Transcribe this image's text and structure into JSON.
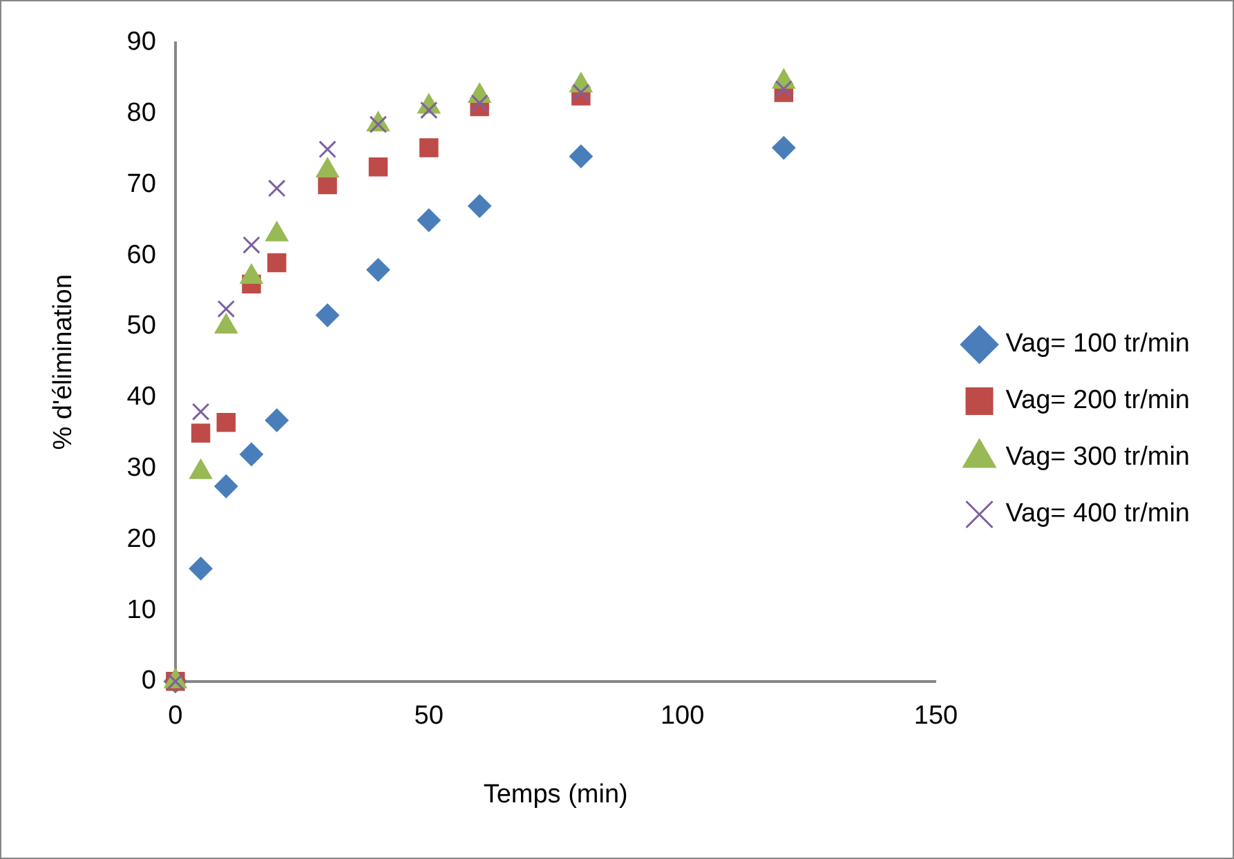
{
  "chart_data": {
    "type": "scatter",
    "xlabel": "Temps (min)",
    "ylabel": "% d'élimination",
    "x": [
      0,
      5,
      10,
      15,
      20,
      30,
      40,
      50,
      60,
      80,
      120
    ],
    "xlim": [
      0,
      150
    ],
    "xticks": [
      0,
      50,
      100,
      150
    ],
    "ylim": [
      0,
      90
    ],
    "yticks": [
      0,
      10,
      20,
      30,
      40,
      50,
      60,
      70,
      80,
      90
    ],
    "grid": false,
    "legend": "right",
    "series": [
      {
        "name": "Vag= 100 tr/min",
        "color": "#4a7ebb",
        "marker": "diamond",
        "values": [
          0,
          15.9,
          27.5,
          32,
          36.8,
          51.6,
          58,
          65,
          67,
          74,
          75.2
        ]
      },
      {
        "name": "Vag= 200 tr/min",
        "color": "#be4b48",
        "marker": "square",
        "values": [
          0,
          35,
          36.5,
          56,
          59,
          70,
          72.5,
          75.2,
          81,
          82.5,
          83
        ]
      },
      {
        "name": "Vag= 300 tr/min",
        "color": "#98b954",
        "marker": "triangle",
        "values": [
          0,
          29.5,
          50,
          57,
          63,
          72,
          78.5,
          81,
          82.5,
          84,
          84.5
        ]
      },
      {
        "name": "Vag= 400 tr/min",
        "color": "#7d60a0",
        "marker": "cross",
        "values": [
          0,
          38,
          52.5,
          61.5,
          69.5,
          75,
          78.5,
          80.5,
          81.5,
          83,
          83.5
        ]
      }
    ]
  }
}
